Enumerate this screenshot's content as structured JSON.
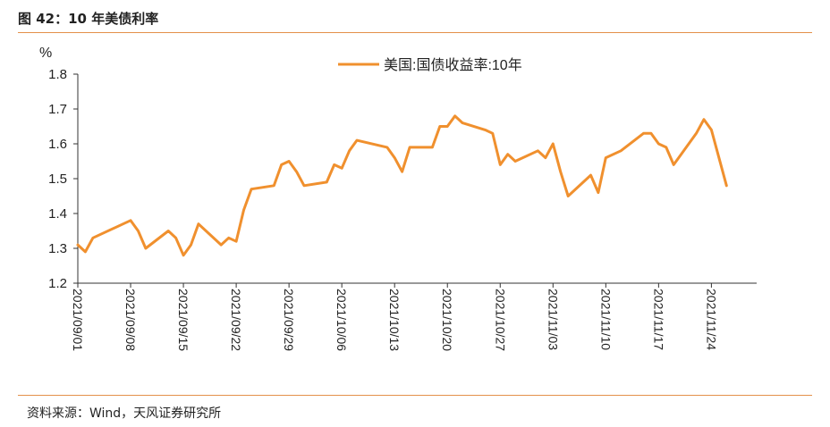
{
  "figure": {
    "title": "图 42：10 年美债利率",
    "source": "资料来源：Wind，天风证券研究所"
  },
  "colors": {
    "line": "#F0902E",
    "rule": "#E4904A",
    "axis": "#333333"
  },
  "chart_data": {
    "type": "line",
    "ylabel": "%",
    "ylim": [
      1.2,
      1.8
    ],
    "yticks": [
      "1.2",
      "1.3",
      "1.4",
      "1.5",
      "1.6",
      "1.7",
      "1.8"
    ],
    "xticks": [
      "2021/09/01",
      "2021/09/08",
      "2021/09/15",
      "2021/09/22",
      "2021/09/29",
      "2021/10/06",
      "2021/10/13",
      "2021/10/20",
      "2021/10/27",
      "2021/11/03",
      "2021/11/10",
      "2021/11/17",
      "2021/11/24"
    ],
    "grid": false,
    "legend": "top-center",
    "series": [
      {
        "name": "美国:国债收益率:10年",
        "x": [
          "2021/09/01",
          "2021/09/02",
          "2021/09/03",
          "2021/09/07",
          "2021/09/08",
          "2021/09/09",
          "2021/09/10",
          "2021/09/13",
          "2021/09/14",
          "2021/09/15",
          "2021/09/16",
          "2021/09/17",
          "2021/09/20",
          "2021/09/21",
          "2021/09/22",
          "2021/09/23",
          "2021/09/24",
          "2021/09/27",
          "2021/09/28",
          "2021/09/29",
          "2021/09/30",
          "2021/10/01",
          "2021/10/04",
          "2021/10/05",
          "2021/10/06",
          "2021/10/07",
          "2021/10/08",
          "2021/10/12",
          "2021/10/13",
          "2021/10/14",
          "2021/10/15",
          "2021/10/18",
          "2021/10/19",
          "2021/10/20",
          "2021/10/21",
          "2021/10/22",
          "2021/10/25",
          "2021/10/26",
          "2021/10/27",
          "2021/10/28",
          "2021/10/29",
          "2021/11/01",
          "2021/11/02",
          "2021/11/03",
          "2021/11/04",
          "2021/11/05",
          "2021/11/08",
          "2021/11/09",
          "2021/11/10",
          "2021/11/12",
          "2021/11/15",
          "2021/11/16",
          "2021/11/17",
          "2021/11/18",
          "2021/11/19",
          "2021/11/22",
          "2021/11/23",
          "2021/11/24",
          "2021/11/26"
        ],
        "values": [
          1.31,
          1.29,
          1.33,
          1.37,
          1.38,
          1.35,
          1.3,
          1.35,
          1.33,
          1.28,
          1.31,
          1.37,
          1.31,
          1.33,
          1.32,
          1.41,
          1.47,
          1.48,
          1.54,
          1.55,
          1.52,
          1.48,
          1.49,
          1.54,
          1.53,
          1.58,
          1.61,
          1.59,
          1.56,
          1.52,
          1.59,
          1.59,
          1.65,
          1.65,
          1.68,
          1.66,
          1.64,
          1.63,
          1.54,
          1.57,
          1.55,
          1.58,
          1.56,
          1.6,
          1.52,
          1.45,
          1.51,
          1.46,
          1.56,
          1.58,
          1.63,
          1.63,
          1.6,
          1.59,
          1.54,
          1.63,
          1.67,
          1.64,
          1.48
        ]
      }
    ]
  }
}
